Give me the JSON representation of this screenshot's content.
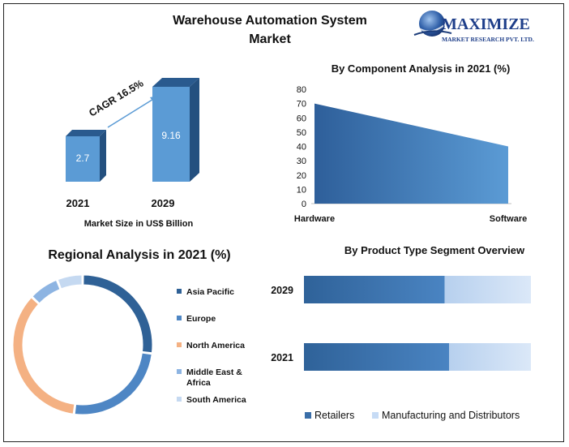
{
  "page_title_line1": "Warehouse Automation System",
  "page_title_line2": "Market",
  "logo": {
    "name": "MAXIMIZE",
    "sub": "MARKET RESEARCH PVT. LTD."
  },
  "chart_data": [
    {
      "type": "bar",
      "title": "",
      "categories": [
        "2021",
        "2029"
      ],
      "values": [
        2.7,
        9.16
      ],
      "xlabel": "Market Size in US$ Billion",
      "annotation": "CAGR 16.5%",
      "color": "#5b9bd5"
    },
    {
      "type": "area",
      "title": "By Component Analysis in 2021 (%)",
      "categories": [
        "Hardware",
        "Software"
      ],
      "values": [
        70,
        40
      ],
      "ylim": [
        0,
        80
      ],
      "yticks": [
        0,
        10,
        20,
        30,
        40,
        50,
        60,
        70,
        80
      ],
      "colors": [
        "#2e5f9a",
        "#5b9bd5"
      ]
    },
    {
      "type": "pie",
      "title": "Regional Analysis in 2021 (%)",
      "labels": [
        "Asia Pacific",
        "Europe",
        "North America",
        "Middle East & Africa",
        "South America"
      ],
      "values": [
        27,
        25,
        35,
        7,
        6
      ],
      "colors": [
        "#2f6196",
        "#4e86c4",
        "#f4b183",
        "#8db4e2",
        "#c5d9f1"
      ],
      "legend": "right"
    },
    {
      "type": "bar",
      "orientation": "horizontal",
      "stacked": true,
      "title": "By Product Type Segment Overview",
      "categories": [
        "2029",
        "2021"
      ],
      "series": [
        {
          "name": "Retailers",
          "values": [
            62,
            64
          ],
          "color": "#3a6ea8"
        },
        {
          "name": "Manufacturing and Distributors",
          "values": [
            38,
            36
          ],
          "color": "#c6dbf5"
        }
      ]
    }
  ]
}
